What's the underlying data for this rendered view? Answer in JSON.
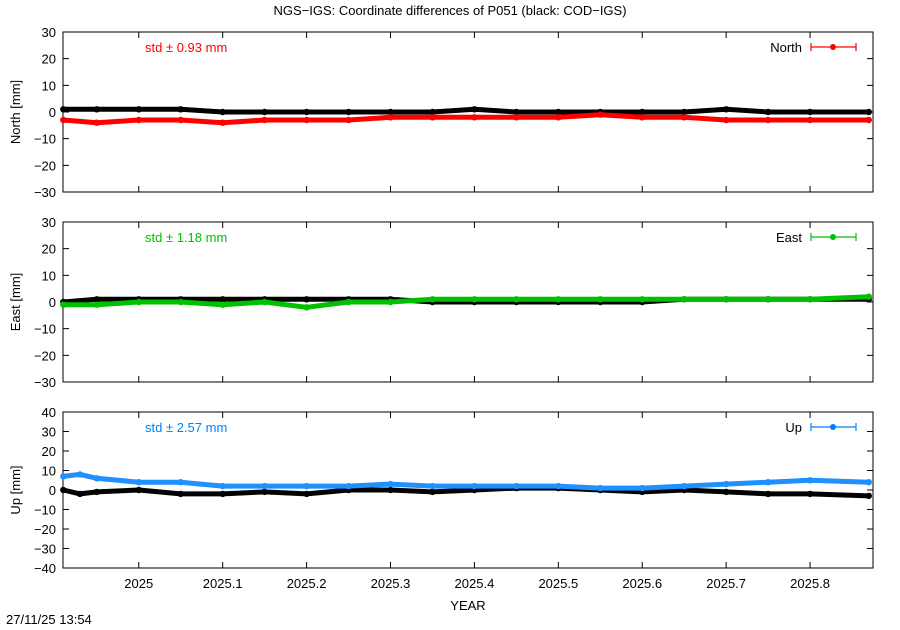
{
  "title": "NGS−IGS: Coordinate differences of P051 (black: COD−IGS)",
  "timestamp": "27/11/25 13:54",
  "xlabel": "YEAR",
  "x_ticks": [
    "2025",
    "2025.1",
    "2025.2",
    "2025.3",
    "2025.4",
    "2025.5",
    "2025.6",
    "2025.7",
    "2025.8"
  ],
  "chart_data": [
    {
      "type": "scatter",
      "ylabel": "North [mm]",
      "legend": "North",
      "std_label": "std ± 0.93 mm",
      "color": "#ff0000",
      "xlim": [
        2024.9097,
        2025.875
      ],
      "ylim": [
        -30,
        30
      ],
      "y_ticks": [
        "30",
        "20",
        "10",
        "0",
        "−10",
        "−20",
        "−30"
      ],
      "series": [
        {
          "label": "NGS-IGS",
          "color": "#ff0000",
          "x": [
            2024.91,
            2024.95,
            2025.0,
            2025.05,
            2025.1,
            2025.15,
            2025.2,
            2025.25,
            2025.3,
            2025.35,
            2025.4,
            2025.45,
            2025.5,
            2025.55,
            2025.6,
            2025.65,
            2025.7,
            2025.75,
            2025.8,
            2025.87
          ],
          "values": [
            -3,
            -4,
            -3,
            -3,
            -4,
            -3,
            -3,
            -3,
            -2,
            -2,
            -2,
            -2,
            -2,
            -1,
            -2,
            -2,
            -3,
            -3,
            -3,
            -3
          ]
        },
        {
          "label": "COD-IGS",
          "color": "#000000",
          "x": [
            2024.91,
            2024.95,
            2025.0,
            2025.05,
            2025.1,
            2025.15,
            2025.2,
            2025.25,
            2025.3,
            2025.35,
            2025.4,
            2025.45,
            2025.5,
            2025.55,
            2025.6,
            2025.65,
            2025.7,
            2025.75,
            2025.8,
            2025.87
          ],
          "values": [
            1,
            1,
            1,
            1,
            0,
            0,
            0,
            0,
            0,
            0,
            1,
            0,
            0,
            0,
            0,
            0,
            1,
            0,
            0,
            0
          ]
        }
      ]
    },
    {
      "type": "scatter",
      "ylabel": "East [mm]",
      "legend": "East",
      "std_label": "std ± 1.18 mm",
      "color": "#00c000",
      "xlim": [
        2024.9097,
        2025.875
      ],
      "ylim": [
        -30,
        30
      ],
      "y_ticks": [
        "30",
        "20",
        "10",
        "0",
        "−10",
        "−20",
        "−30"
      ],
      "series": [
        {
          "label": "NGS-IGS",
          "color": "#00c000",
          "x": [
            2024.91,
            2024.95,
            2025.0,
            2025.05,
            2025.1,
            2025.15,
            2025.2,
            2025.25,
            2025.3,
            2025.35,
            2025.4,
            2025.45,
            2025.5,
            2025.55,
            2025.6,
            2025.65,
            2025.7,
            2025.75,
            2025.8,
            2025.87
          ],
          "values": [
            -1,
            -1,
            0,
            0,
            -1,
            0,
            -2,
            0,
            0,
            1,
            1,
            1,
            1,
            1,
            1,
            1,
            1,
            1,
            1,
            2
          ]
        },
        {
          "label": "COD-IGS",
          "color": "#000000",
          "x": [
            2024.91,
            2024.95,
            2025.0,
            2025.05,
            2025.1,
            2025.15,
            2025.2,
            2025.25,
            2025.3,
            2025.35,
            2025.4,
            2025.45,
            2025.5,
            2025.55,
            2025.6,
            2025.65,
            2025.7,
            2025.75,
            2025.8,
            2025.87
          ],
          "values": [
            0,
            1,
            1,
            1,
            1,
            1,
            1,
            1,
            1,
            0,
            0,
            0,
            0,
            0,
            0,
            1,
            1,
            1,
            1,
            1
          ]
        }
      ]
    },
    {
      "type": "scatter",
      "ylabel": "Up [mm]",
      "legend": "Up",
      "std_label": "std ± 2.57 mm",
      "color": "#0080ff",
      "xlim": [
        2024.9097,
        2025.875
      ],
      "ylim": [
        -40,
        40
      ],
      "y_ticks": [
        "40",
        "30",
        "20",
        "10",
        "0",
        "−10",
        "−20",
        "−30",
        "−40"
      ],
      "series": [
        {
          "label": "NGS-IGS",
          "color": "#1e90ff",
          "x": [
            2024.91,
            2024.93,
            2024.95,
            2025.0,
            2025.05,
            2025.1,
            2025.15,
            2025.2,
            2025.25,
            2025.3,
            2025.35,
            2025.4,
            2025.45,
            2025.5,
            2025.55,
            2025.6,
            2025.65,
            2025.7,
            2025.75,
            2025.8,
            2025.87
          ],
          "values": [
            7,
            8,
            6,
            4,
            4,
            2,
            2,
            2,
            2,
            3,
            2,
            2,
            2,
            2,
            1,
            1,
            2,
            3,
            4,
            5,
            4
          ]
        },
        {
          "label": "COD-IGS",
          "color": "#000000",
          "x": [
            2024.91,
            2024.93,
            2024.95,
            2025.0,
            2025.05,
            2025.1,
            2025.15,
            2025.2,
            2025.25,
            2025.3,
            2025.35,
            2025.4,
            2025.45,
            2025.5,
            2025.55,
            2025.6,
            2025.65,
            2025.7,
            2025.75,
            2025.8,
            2025.87
          ],
          "values": [
            0,
            -2,
            -1,
            0,
            -2,
            -2,
            -1,
            -2,
            0,
            0,
            -1,
            0,
            1,
            1,
            0,
            -1,
            0,
            -1,
            -2,
            -2,
            -3
          ]
        }
      ]
    }
  ]
}
